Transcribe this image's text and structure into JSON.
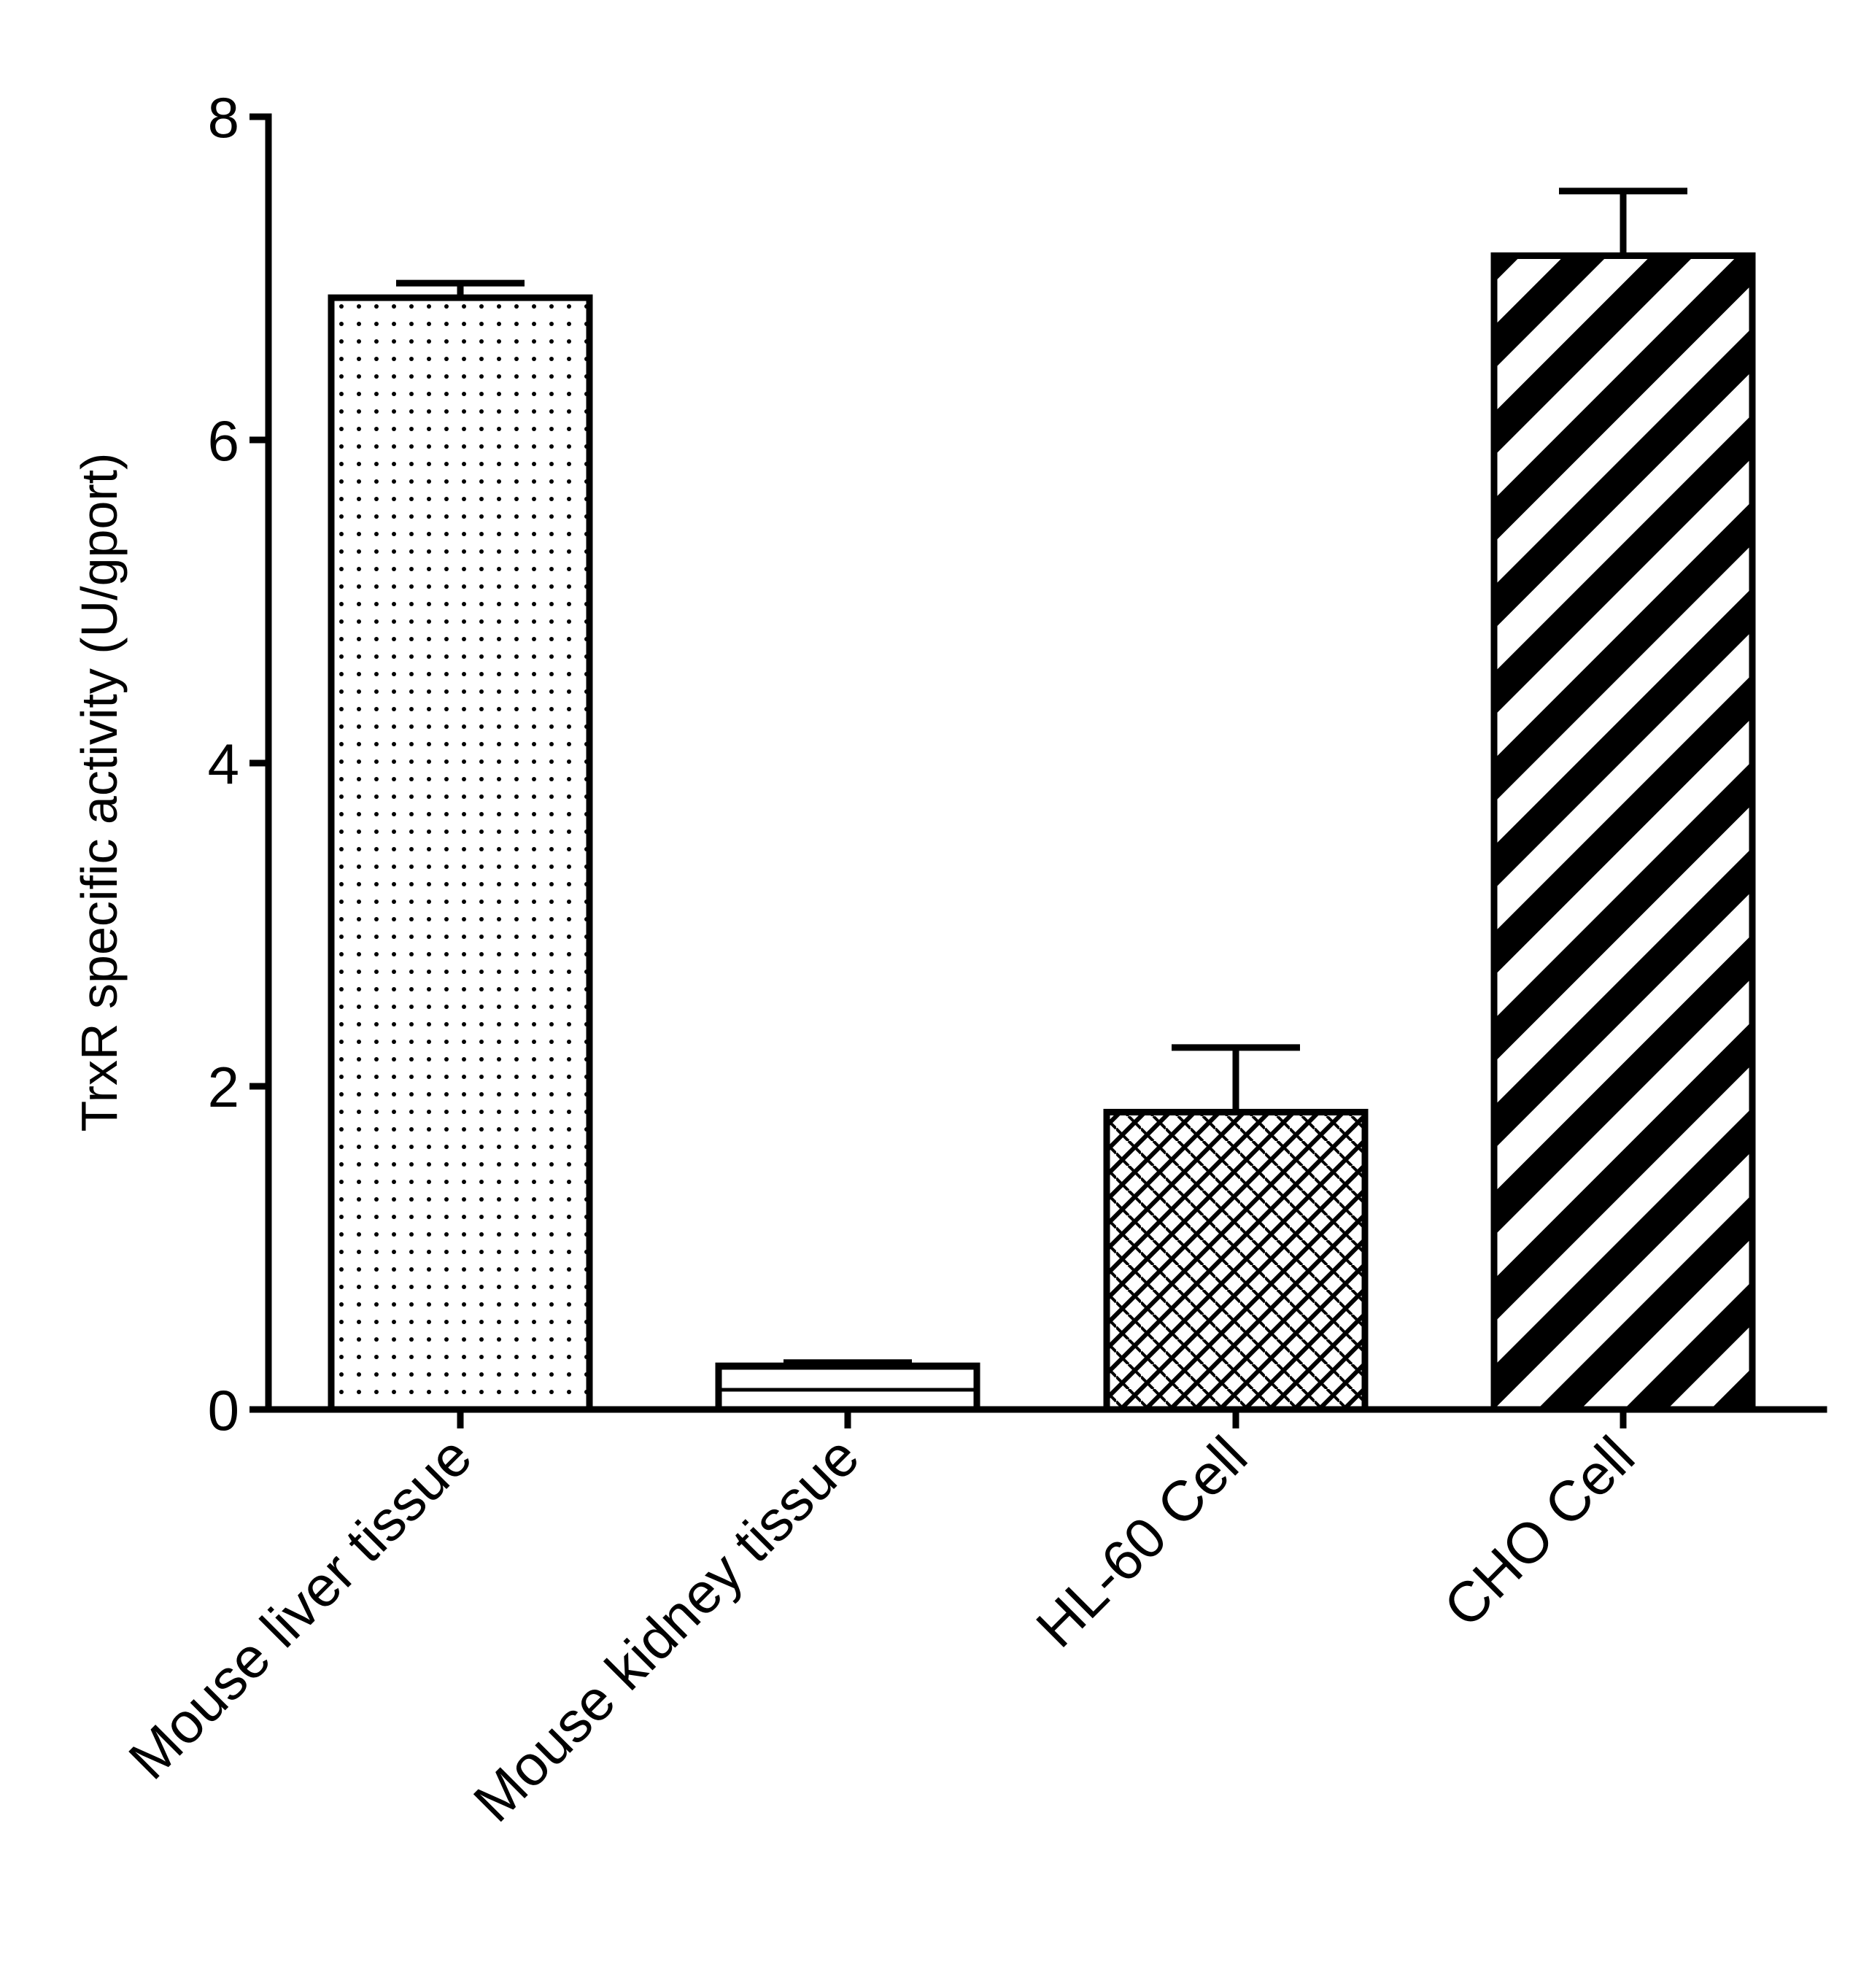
{
  "chart_data": {
    "type": "bar",
    "title": "",
    "xlabel": "",
    "ylabel": "TrxR specific activity (U/gport)",
    "ylim": [
      0,
      8
    ],
    "yticks": [
      0,
      2,
      4,
      6,
      8
    ],
    "grid": false,
    "legend": "none",
    "categories": [
      "Mouse liver tissue",
      "Mouse kidney tissue",
      "HL-60 Cell",
      "CHO Cell"
    ],
    "values": [
      6.88,
      0.27,
      1.84,
      7.14
    ],
    "errors": [
      0.09,
      0.02,
      0.4,
      0.4
    ],
    "fill_patterns": [
      "dots",
      "horizontal-lines",
      "crosshatch",
      "diagonal-stripes"
    ],
    "colors": {
      "stroke": "#000000",
      "fill": "#ffffff"
    }
  }
}
